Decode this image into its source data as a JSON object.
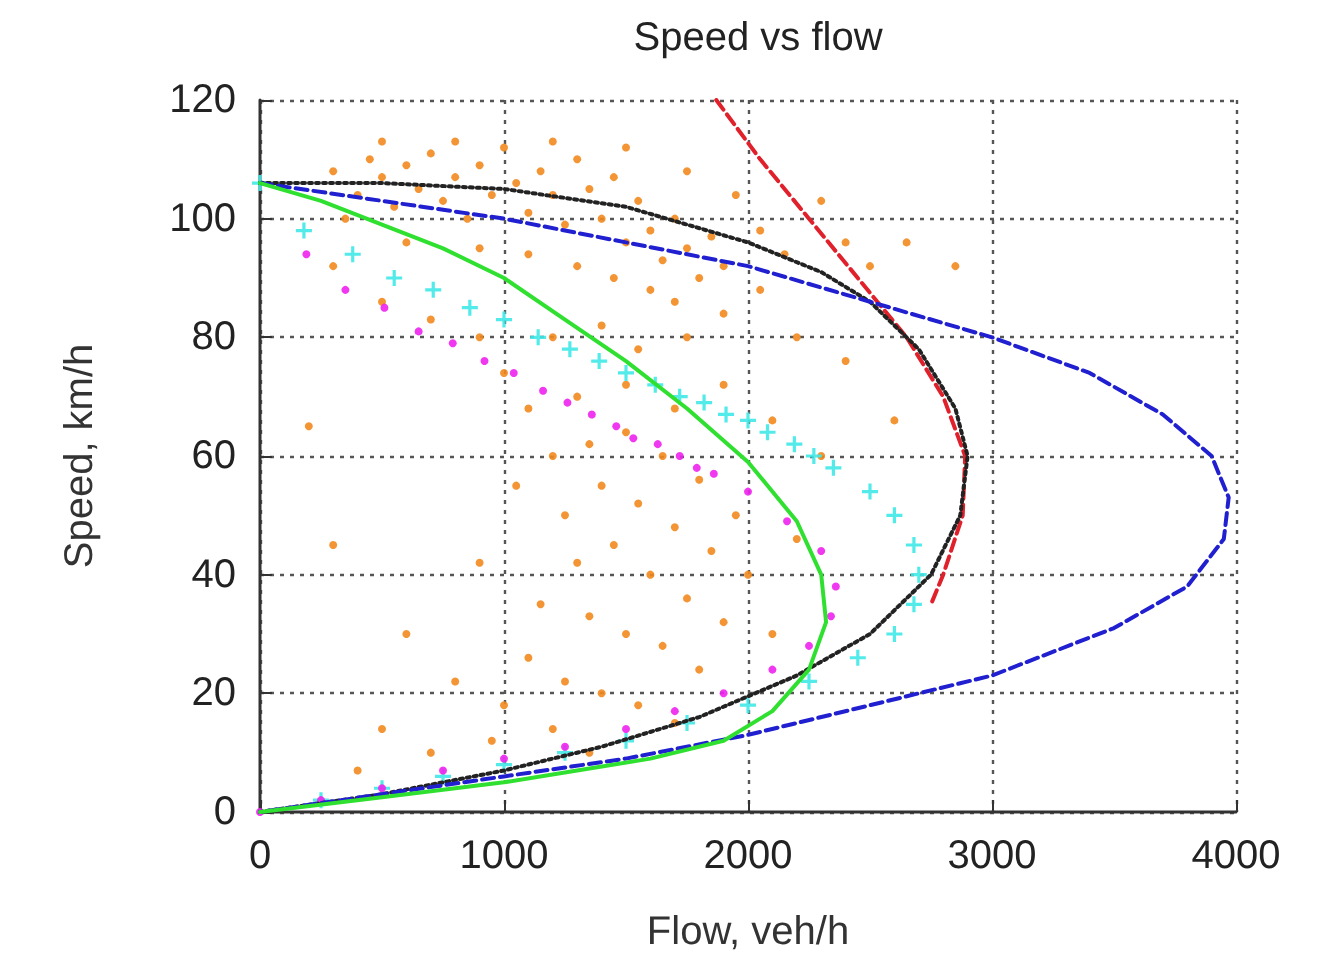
{
  "chart_data": {
    "type": "scatter",
    "title": "Speed vs flow",
    "xlabel": "Flow, veh/h",
    "ylabel": "Speed, km/h",
    "xlim": [
      0,
      4000
    ],
    "xticks": [
      0,
      1000,
      2000,
      3000,
      4000
    ],
    "ylim": [
      0,
      120
    ],
    "yticks": [
      0,
      20,
      40,
      60,
      80,
      100,
      120
    ],
    "grid": true,
    "series": [
      {
        "marker": "circle",
        "color": "#f28a1e",
        "x": [
          300,
          400,
          450,
          500,
          550,
          600,
          650,
          700,
          750,
          800,
          850,
          900,
          950,
          1000,
          1050,
          1100,
          1150,
          1200,
          1250,
          1300,
          1350,
          1400,
          1450,
          1500,
          1550,
          1600,
          1650,
          1700,
          1750,
          1800,
          1850,
          1900,
          350,
          600,
          900,
          1100,
          1300,
          1450,
          1600,
          1700,
          1200,
          800,
          500,
          1500,
          1750,
          1950,
          2050,
          2150,
          2300,
          2400,
          2500,
          300,
          500,
          700,
          900,
          1000,
          1200,
          1400,
          1550,
          1750,
          1900,
          2050,
          2200,
          2400,
          2600,
          2650,
          2850,
          1100,
          1300,
          1500,
          1700,
          1900,
          2100,
          2300,
          1200,
          1350,
          1500,
          1650,
          1800,
          1950,
          1250,
          1400,
          1550,
          1700,
          1850,
          1300,
          1450,
          1600,
          1750,
          1900,
          1150,
          1350,
          1500,
          1650,
          1800,
          1100,
          1250,
          1400,
          1550,
          1700,
          1000,
          1200,
          1350,
          950,
          700,
          500,
          400,
          800,
          600,
          300,
          200,
          900,
          1050,
          2000,
          2100,
          2200
        ],
        "values": [
          108,
          104,
          110,
          107,
          102,
          109,
          105,
          111,
          103,
          107,
          100,
          109,
          104,
          112,
          106,
          101,
          108,
          104,
          99,
          110,
          105,
          100,
          107,
          96,
          103,
          98,
          93,
          100,
          95,
          90,
          97,
          92,
          100,
          96,
          95,
          94,
          92,
          90,
          88,
          86,
          113,
          113,
          113,
          112,
          108,
          104,
          98,
          94,
          103,
          96,
          92,
          92,
          86,
          83,
          80,
          74,
          80,
          82,
          78,
          80,
          84,
          88,
          80,
          76,
          66,
          96,
          92,
          68,
          70,
          72,
          68,
          72,
          66,
          60,
          60,
          62,
          64,
          60,
          56,
          50,
          50,
          55,
          52,
          48,
          44,
          42,
          45,
          40,
          36,
          32,
          35,
          33,
          30,
          28,
          24,
          26,
          22,
          20,
          18,
          15,
          18,
          14,
          10,
          12,
          10,
          14,
          7,
          22,
          30,
          45,
          65,
          42,
          55,
          40,
          30,
          46
        ]
      },
      {
        "type": "line",
        "marker": "none",
        "line_style": "dashed",
        "color": "#e0202a",
        "x": [
          1870,
          2050,
          2250,
          2450,
          2650,
          2800,
          2890,
          2880,
          2800,
          2750
        ],
        "values": [
          120,
          110,
          100,
          90,
          80,
          70,
          60,
          50,
          40,
          35
        ]
      },
      {
        "type": "line",
        "marker": "none",
        "line_style": "dotted",
        "color": "#222222",
        "x": [
          0,
          500,
          1000,
          1500,
          2000,
          2300,
          2500,
          2700,
          2850,
          2900,
          2870,
          2750,
          2500,
          2200,
          1800,
          1400,
          1000,
          500,
          0
        ],
        "values": [
          106,
          106,
          105,
          102,
          96,
          91,
          86,
          78,
          68,
          60,
          50,
          40,
          30,
          23,
          16,
          11,
          7,
          3,
          0
        ]
      },
      {
        "type": "line",
        "marker": "none",
        "line_style": "dashed",
        "color": "#2020d0",
        "x": [
          0,
          500,
          1000,
          1500,
          2000,
          2500,
          3000,
          3400,
          3700,
          3900,
          3970,
          3950,
          3800,
          3500,
          3000,
          2500,
          2000,
          1500,
          1000,
          500,
          0
        ],
        "values": [
          106,
          103,
          100,
          96,
          92,
          86,
          80,
          74,
          67,
          60,
          53,
          46,
          38,
          31,
          23,
          18,
          13,
          9,
          6,
          3,
          0
        ]
      },
      {
        "type": "line",
        "marker": "none",
        "line_style": "solid",
        "color": "#30e030",
        "x": [
          0,
          250,
          500,
          750,
          1000,
          1250,
          1500,
          1750,
          2000,
          2200,
          2300,
          2320,
          2250,
          2100,
          1900,
          1600,
          1300,
          1000,
          500,
          0
        ],
        "values": [
          106,
          103,
          99,
          95,
          90,
          83,
          76,
          68,
          59,
          49,
          40,
          32,
          24,
          17,
          12,
          9,
          7,
          5,
          2.5,
          0
        ]
      },
      {
        "marker": "cross",
        "color": "#40e8e8",
        "x": [
          0,
          180,
          380,
          550,
          710,
          860,
          1000,
          1140,
          1270,
          1390,
          1500,
          1620,
          1720,
          1820,
          1910,
          2000,
          2080,
          2190,
          2270,
          2350,
          2500,
          2600,
          2680,
          2700,
          2680,
          2600,
          2450,
          2250,
          2000,
          1750,
          1500,
          1250,
          1000,
          750,
          500,
          250
        ],
        "values": [
          106,
          98,
          94,
          90,
          88,
          85,
          83,
          80,
          78,
          76,
          74,
          72,
          70,
          69,
          67,
          66,
          64,
          62,
          60,
          58,
          54,
          50,
          45,
          40,
          35,
          30,
          26,
          22,
          18,
          15,
          12,
          10,
          8,
          6,
          4,
          2
        ]
      },
      {
        "marker": "circle",
        "color": "#ee22ee",
        "x": [
          190,
          350,
          510,
          650,
          790,
          920,
          1040,
          1160,
          1260,
          1360,
          1460,
          1530,
          1630,
          1720,
          1790,
          1860,
          2000,
          2160,
          2300,
          2360,
          2340,
          2250,
          2100,
          1900,
          1700,
          1500,
          1250,
          1000,
          750,
          500,
          250,
          0
        ],
        "values": [
          94,
          88,
          85,
          81,
          79,
          76,
          74,
          71,
          69,
          67,
          65,
          63,
          62,
          60,
          58,
          57,
          54,
          49,
          44,
          38,
          33,
          28,
          24,
          20,
          17,
          14,
          11,
          9,
          7,
          4,
          2,
          0
        ]
      }
    ]
  }
}
